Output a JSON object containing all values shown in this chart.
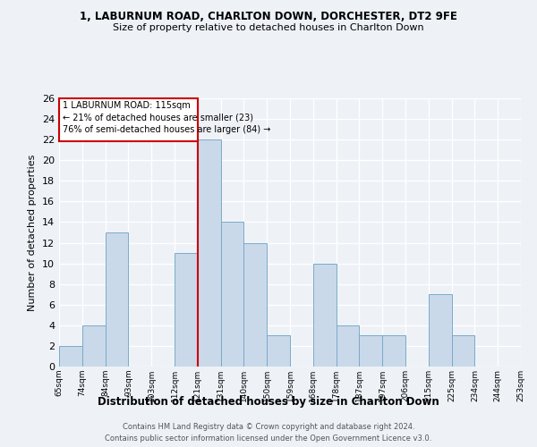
{
  "title_line1": "1, LABURNUM ROAD, CHARLTON DOWN, DORCHESTER, DT2 9FE",
  "title_line2": "Size of property relative to detached houses in Charlton Down",
  "xlabel": "Distribution of detached houses by size in Charlton Down",
  "ylabel": "Number of detached properties",
  "footer_line1": "Contains HM Land Registry data © Crown copyright and database right 2024.",
  "footer_line2": "Contains public sector information licensed under the Open Government Licence v3.0.",
  "bin_labels": [
    "65sqm",
    "74sqm",
    "84sqm",
    "93sqm",
    "103sqm",
    "112sqm",
    "121sqm",
    "131sqm",
    "140sqm",
    "150sqm",
    "159sqm",
    "168sqm",
    "178sqm",
    "187sqm",
    "197sqm",
    "206sqm",
    "215sqm",
    "225sqm",
    "234sqm",
    "244sqm",
    "253sqm"
  ],
  "bar_values": [
    2,
    4,
    13,
    0,
    0,
    11,
    22,
    14,
    12,
    3,
    0,
    10,
    4,
    3,
    3,
    0,
    7,
    3,
    0,
    0
  ],
  "subject_bin_index": 5,
  "subject_label": "1 LABURNUM ROAD: 115sqm",
  "annotation_line1": "← 21% of detached houses are smaller (23)",
  "annotation_line2": "76% of semi-detached houses are larger (84) →",
  "bar_color": "#c9d9ea",
  "bar_edge_color": "#7aaac8",
  "subject_line_color": "#cc0000",
  "annotation_box_color": "#cc0000",
  "background_color": "#eef2f7",
  "ylim": [
    0,
    26
  ],
  "yticks": [
    0,
    2,
    4,
    6,
    8,
    10,
    12,
    14,
    16,
    18,
    20,
    22,
    24,
    26
  ]
}
